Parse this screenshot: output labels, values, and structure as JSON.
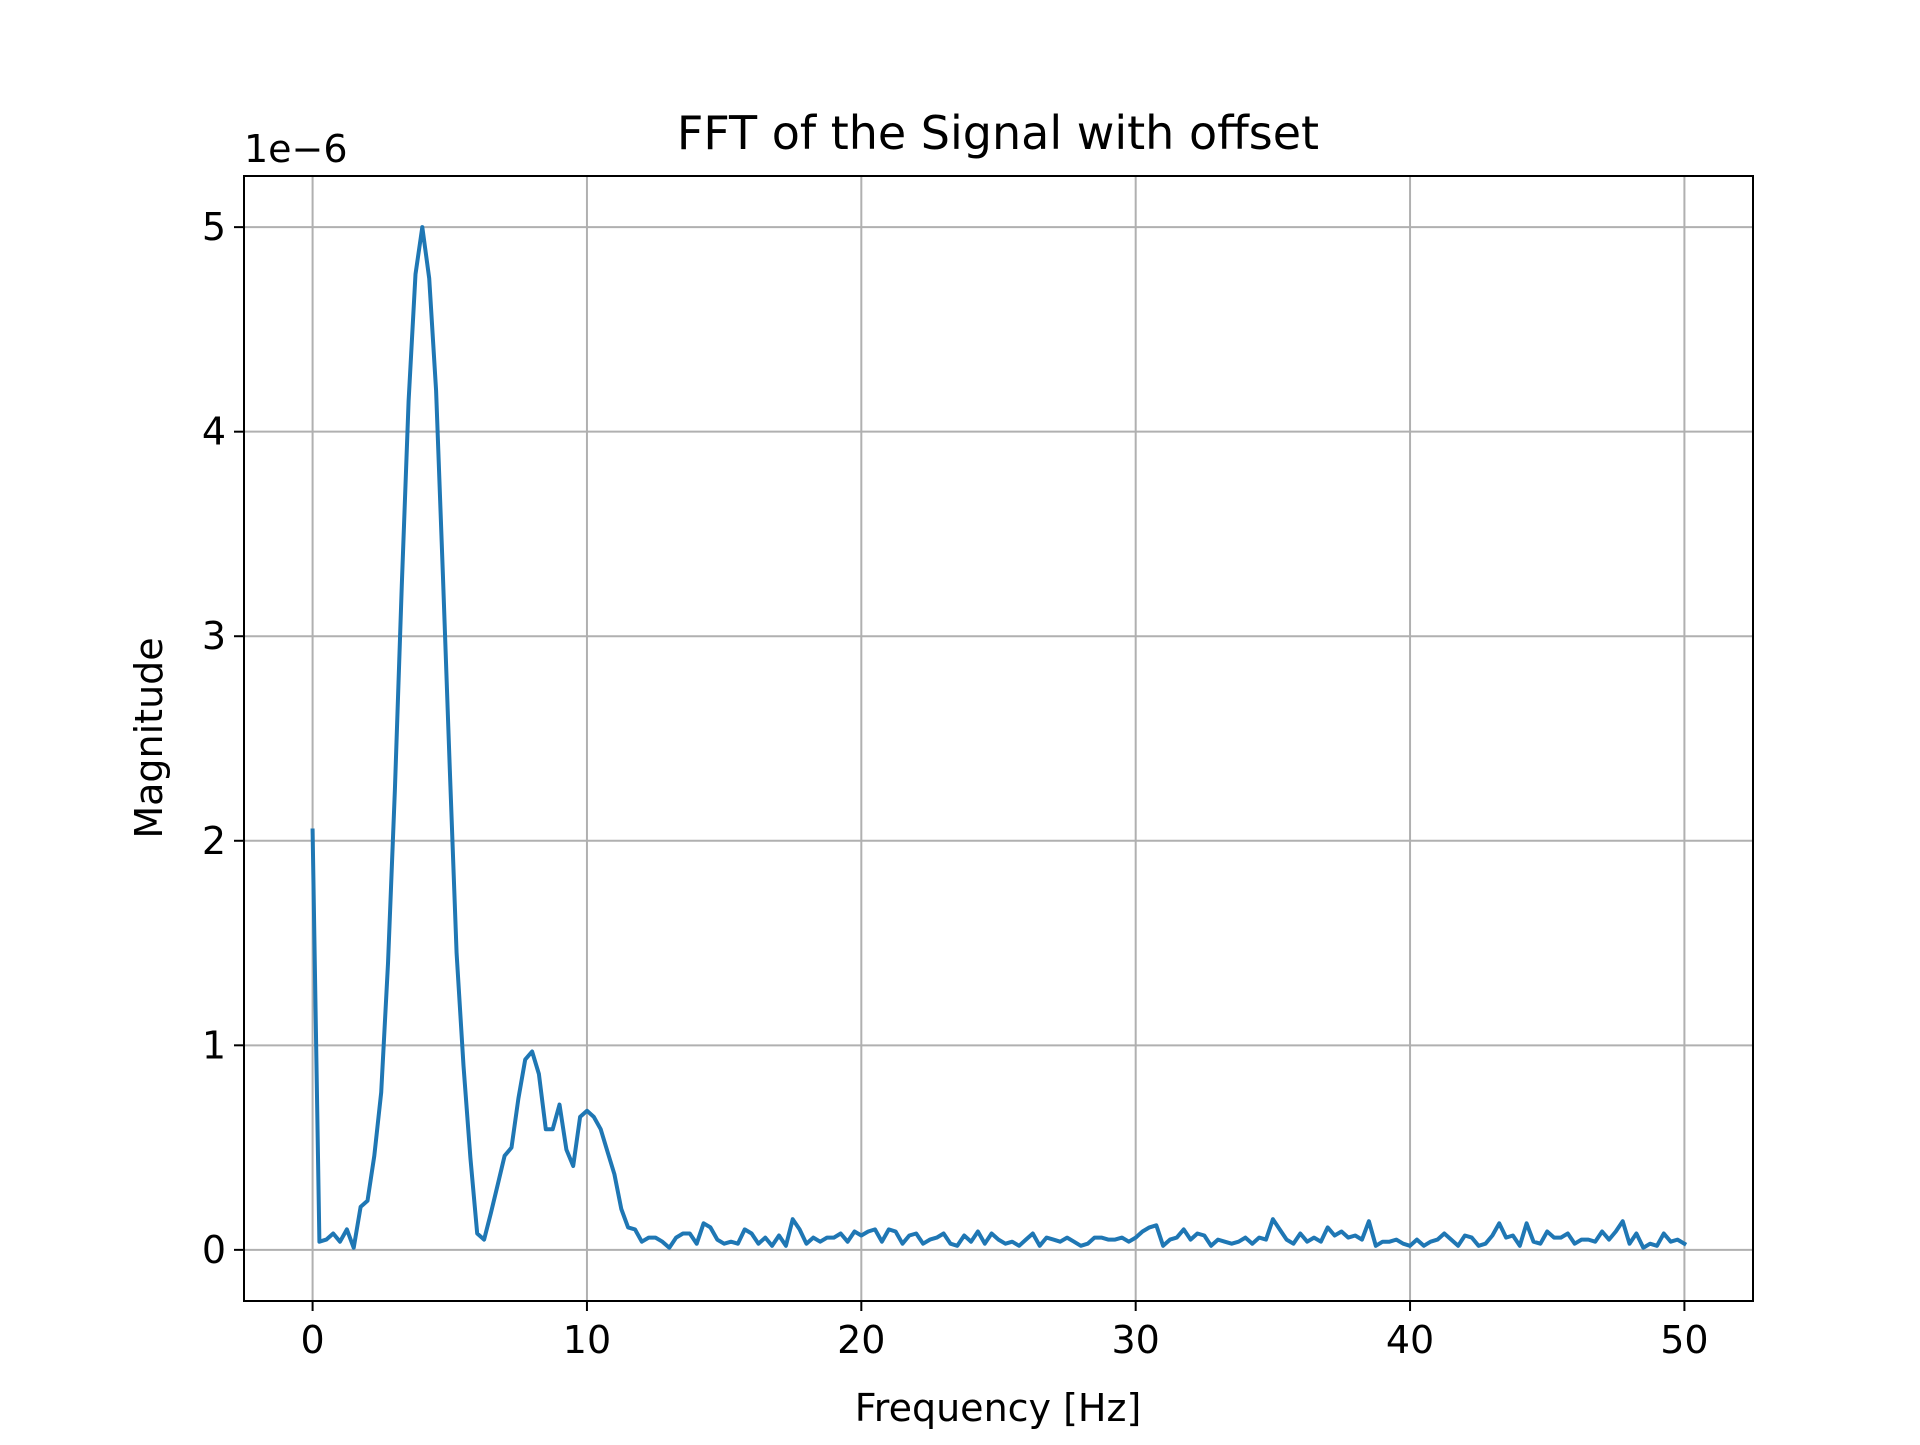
{
  "chart_data": {
    "type": "line",
    "title": "FFT of the Signal with offset",
    "xlabel": "Frequency [Hz]",
    "ylabel": "Magnitude",
    "y_offset_label": "1e−6",
    "xlim": [
      -2.5,
      52.5
    ],
    "ylim": [
      -0.25,
      5.25
    ],
    "x_ticks": [
      0,
      10,
      20,
      30,
      40,
      50
    ],
    "y_ticks": [
      0,
      1,
      2,
      3,
      4,
      5
    ],
    "grid": true,
    "line_color": "#1f77b4",
    "series": [
      {
        "x": [
          0.0,
          0.25,
          0.5,
          0.75,
          1.0,
          1.25,
          1.5,
          1.75,
          2.0,
          2.25,
          2.5,
          2.75,
          3.0,
          3.25,
          3.5,
          3.75,
          4.0,
          4.25,
          4.5,
          4.75,
          5.0,
          5.25,
          5.5,
          5.75,
          6.0,
          6.25,
          6.5,
          6.75,
          7.0,
          7.25,
          7.5,
          7.75,
          8.0,
          8.25,
          8.5,
          8.75,
          9.0,
          9.25,
          9.5,
          9.75,
          10.0,
          10.25,
          10.5,
          10.75,
          11.0,
          11.25,
          11.5,
          11.75,
          12.0,
          12.25,
          12.5,
          12.75,
          13.0,
          13.25,
          13.5,
          13.75,
          14.0,
          14.25,
          14.5,
          14.75,
          15.0,
          15.25,
          15.5,
          15.75,
          16.0,
          16.25,
          16.5,
          16.75,
          17.0,
          17.25,
          17.5,
          17.75,
          18.0,
          18.25,
          18.5,
          18.75,
          19.0,
          19.25,
          19.5,
          19.75,
          20.0,
          20.25,
          20.5,
          20.75,
          21.0,
          21.25,
          21.5,
          21.75,
          22.0,
          22.25,
          22.5,
          22.75,
          23.0,
          23.25,
          23.5,
          23.75,
          24.0,
          24.25,
          24.5,
          24.75,
          25.0,
          25.25,
          25.5,
          25.75,
          26.0,
          26.25,
          26.5,
          26.75,
          27.0,
          27.25,
          27.5,
          27.75,
          28.0,
          28.25,
          28.5,
          28.75,
          29.0,
          29.25,
          29.5,
          29.75,
          30.0,
          30.25,
          30.5,
          30.75,
          31.0,
          31.25,
          31.5,
          31.75,
          32.0,
          32.25,
          32.5,
          32.75,
          33.0,
          33.25,
          33.5,
          33.75,
          34.0,
          34.25,
          34.5,
          34.75,
          35.0,
          35.25,
          35.5,
          35.75,
          36.0,
          36.25,
          36.5,
          36.75,
          37.0,
          37.25,
          37.5,
          37.75,
          38.0,
          38.25,
          38.5,
          38.75,
          39.0,
          39.25,
          39.5,
          39.75,
          40.0,
          40.25,
          40.5,
          40.75,
          41.0,
          41.25,
          41.5,
          41.75,
          42.0,
          42.25,
          42.5,
          42.75,
          43.0,
          43.25,
          43.5,
          43.75,
          44.0,
          44.25,
          44.5,
          44.75,
          45.0,
          45.25,
          45.5,
          45.75,
          46.0,
          46.25,
          46.5,
          46.75,
          47.0,
          47.25,
          47.5,
          47.75,
          48.0,
          48.25,
          48.5,
          48.75,
          49.0,
          49.25,
          49.5,
          49.75,
          50.0
        ],
        "y": [
          2.05,
          0.04,
          0.05,
          0.08,
          0.04,
          0.1,
          0.01,
          0.21,
          0.24,
          0.46,
          0.77,
          1.4,
          2.25,
          3.25,
          4.15,
          4.77,
          5.0,
          4.75,
          4.2,
          3.3,
          2.35,
          1.45,
          0.9,
          0.45,
          0.08,
          0.05,
          0.18,
          0.32,
          0.46,
          0.5,
          0.74,
          0.93,
          0.97,
          0.86,
          0.59,
          0.59,
          0.71,
          0.49,
          0.41,
          0.65,
          0.68,
          0.65,
          0.59,
          0.48,
          0.37,
          0.2,
          0.11,
          0.1,
          0.04,
          0.06,
          0.06,
          0.04,
          0.01,
          0.06,
          0.08,
          0.08,
          0.03,
          0.13,
          0.11,
          0.05,
          0.03,
          0.04,
          0.03,
          0.1,
          0.08,
          0.03,
          0.06,
          0.02,
          0.07,
          0.02,
          0.15,
          0.1,
          0.03,
          0.06,
          0.04,
          0.06,
          0.06,
          0.08,
          0.04,
          0.09,
          0.07,
          0.09,
          0.1,
          0.04,
          0.1,
          0.09,
          0.03,
          0.07,
          0.08,
          0.03,
          0.05,
          0.06,
          0.08,
          0.03,
          0.02,
          0.07,
          0.04,
          0.09,
          0.03,
          0.08,
          0.05,
          0.03,
          0.04,
          0.02,
          0.05,
          0.08,
          0.02,
          0.06,
          0.05,
          0.04,
          0.06,
          0.04,
          0.02,
          0.03,
          0.06,
          0.06,
          0.05,
          0.05,
          0.06,
          0.04,
          0.06,
          0.09,
          0.11,
          0.12,
          0.02,
          0.05,
          0.06,
          0.1,
          0.05,
          0.08,
          0.07,
          0.02,
          0.05,
          0.04,
          0.03,
          0.04,
          0.06,
          0.03,
          0.06,
          0.05,
          0.15,
          0.1,
          0.05,
          0.03,
          0.08,
          0.04,
          0.06,
          0.04,
          0.11,
          0.07,
          0.09,
          0.06,
          0.07,
          0.05,
          0.14,
          0.02,
          0.04,
          0.04,
          0.05,
          0.03,
          0.02,
          0.05,
          0.02,
          0.04,
          0.05,
          0.08,
          0.05,
          0.02,
          0.07,
          0.06,
          0.02,
          0.03,
          0.07,
          0.13,
          0.06,
          0.07,
          0.02,
          0.13,
          0.04,
          0.03,
          0.09,
          0.06,
          0.06,
          0.08,
          0.03,
          0.05,
          0.05,
          0.04,
          0.09,
          0.05,
          0.09,
          0.14,
          0.03,
          0.08,
          0.01,
          0.03,
          0.02,
          0.08,
          0.04,
          0.05,
          0.03
        ]
      }
    ]
  }
}
